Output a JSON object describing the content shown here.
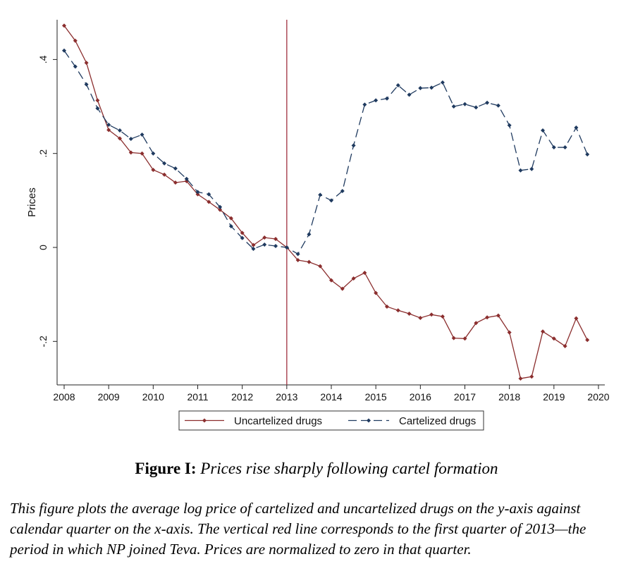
{
  "chart_data": {
    "type": "line",
    "xlabel": "",
    "ylabel": "Prices",
    "xlim": [
      2008,
      2020
    ],
    "ylim": [
      -0.29,
      0.48
    ],
    "xticks": [
      "2008",
      "2009",
      "2010",
      "2011",
      "2012",
      "2013",
      "2014",
      "2015",
      "2016",
      "2017",
      "2018",
      "2019",
      "2020"
    ],
    "yticks": [
      {
        "value": 0.4,
        "label": ".4"
      },
      {
        "value": 0.2,
        "label": ".2"
      },
      {
        "value": 0,
        "label": "0"
      },
      {
        "value": -0.2,
        "label": "-.2"
      }
    ],
    "vline": {
      "x": 2013,
      "color": "#a03040"
    },
    "legend_placement": "bottom",
    "grid": false,
    "x": [
      2008.0,
      2008.25,
      2008.5,
      2008.75,
      2009.0,
      2009.25,
      2009.5,
      2009.75,
      2010.0,
      2010.25,
      2010.5,
      2010.75,
      2011.0,
      2011.25,
      2011.5,
      2011.75,
      2012.0,
      2012.25,
      2012.5,
      2012.75,
      2013.0,
      2013.25,
      2013.5,
      2013.75,
      2014.0,
      2014.25,
      2014.5,
      2014.75,
      2015.0,
      2015.25,
      2015.5,
      2015.75,
      2016.0,
      2016.25,
      2016.5,
      2016.75,
      2017.0,
      2017.25,
      2017.5,
      2017.75,
      2018.0,
      2018.25,
      2018.5,
      2018.75,
      2019.0,
      2019.25,
      2019.5,
      2019.75
    ],
    "series": [
      {
        "name": "Uncartelized drugs",
        "color": "#8b2e2e",
        "dash": "solid",
        "values": [
          0.472,
          0.44,
          0.393,
          0.313,
          0.25,
          0.232,
          0.202,
          0.2,
          0.165,
          0.155,
          0.138,
          0.141,
          0.113,
          0.097,
          0.08,
          0.062,
          0.031,
          0.005,
          0.021,
          0.018,
          0.0,
          -0.027,
          -0.031,
          -0.04,
          -0.07,
          -0.088,
          -0.066,
          -0.054,
          -0.097,
          -0.126,
          -0.134,
          -0.141,
          -0.15,
          -0.143,
          -0.147,
          -0.193,
          -0.194,
          -0.161,
          -0.149,
          -0.145,
          -0.181,
          -0.279,
          -0.275,
          -0.179,
          -0.194,
          -0.21,
          -0.151,
          -0.197
        ]
      },
      {
        "name": "Cartelized drugs",
        "color": "#1f3a5f",
        "dash": "dashed",
        "values": [
          0.419,
          0.385,
          0.347,
          0.296,
          0.261,
          0.249,
          0.231,
          0.24,
          0.2,
          0.179,
          0.168,
          0.146,
          0.118,
          0.113,
          0.086,
          0.045,
          0.02,
          -0.003,
          0.006,
          0.003,
          0.0,
          -0.014,
          0.028,
          0.112,
          0.1,
          0.12,
          0.217,
          0.304,
          0.313,
          0.317,
          0.345,
          0.325,
          0.339,
          0.34,
          0.351,
          0.3,
          0.305,
          0.298,
          0.308,
          0.302,
          0.26,
          0.164,
          0.167,
          0.249,
          0.213,
          0.213,
          0.255,
          0.198
        ]
      }
    ]
  },
  "caption": {
    "label": "Figure I:",
    "title": "Prices rise sharply following cartel formation",
    "body": "This figure plots the average log price of cartelized and uncartelized drugs on the y-axis against calendar quarter on the x-axis. The vertical red line corresponds to the first quarter of 2013—the period in which NP joined Teva. Prices are normalized to zero in that quarter."
  }
}
